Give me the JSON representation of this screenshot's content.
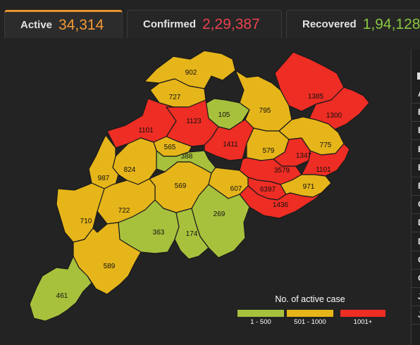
{
  "tabs": [
    {
      "label": "Active",
      "value": "34,314"
    },
    {
      "label": "Confirmed",
      "value": "2,29,387"
    },
    {
      "label": "Recovered",
      "value": "1,94,128"
    }
  ],
  "map": {
    "colors": {
      "low": "#a7c13d",
      "mid": "#e6b51a",
      "high": "#ee2d24"
    },
    "districts": [
      {
        "value": "902",
        "level": "mid"
      },
      {
        "value": "727",
        "level": "mid"
      },
      {
        "value": "1385",
        "level": "high"
      },
      {
        "value": "1300",
        "level": "high"
      },
      {
        "value": "105",
        "level": "low"
      },
      {
        "value": "795",
        "level": "mid"
      },
      {
        "value": "1101",
        "level": "high"
      },
      {
        "value": "1123",
        "level": "high"
      },
      {
        "value": "565",
        "level": "mid"
      },
      {
        "value": "1411",
        "level": "high"
      },
      {
        "value": "579",
        "level": "mid"
      },
      {
        "value": "775",
        "level": "mid"
      },
      {
        "value": "388",
        "level": "low"
      },
      {
        "value": "1347",
        "level": "high"
      },
      {
        "value": "824",
        "level": "mid"
      },
      {
        "value": "987",
        "level": "mid"
      },
      {
        "value": "3579",
        "level": "high"
      },
      {
        "value": "1101",
        "level": "high"
      },
      {
        "value": "569",
        "level": "mid"
      },
      {
        "value": "607",
        "level": "mid"
      },
      {
        "value": "6397",
        "level": "high"
      },
      {
        "value": "971",
        "level": "mid"
      },
      {
        "value": "722",
        "level": "mid"
      },
      {
        "value": "1436",
        "level": "high"
      },
      {
        "value": "269",
        "level": "low"
      },
      {
        "value": "710",
        "level": "mid"
      },
      {
        "value": "363",
        "level": "low"
      },
      {
        "value": "174",
        "level": "low"
      },
      {
        "value": "589",
        "level": "mid"
      },
      {
        "value": "461",
        "level": "low"
      }
    ]
  },
  "legend": {
    "title": "No. of active case",
    "items": [
      {
        "label": "1 - 500",
        "color": "#a7c13d"
      },
      {
        "label": "501 - 1000",
        "color": "#e6b51a"
      },
      {
        "label": "1001+",
        "color": "#ee2d24"
      }
    ]
  },
  "right_panel": {
    "items": [
      "A",
      "B",
      "B",
      "B",
      "B",
      "B",
      "C",
      "D",
      "D",
      "G",
      "G",
      "J",
      "J"
    ]
  }
}
